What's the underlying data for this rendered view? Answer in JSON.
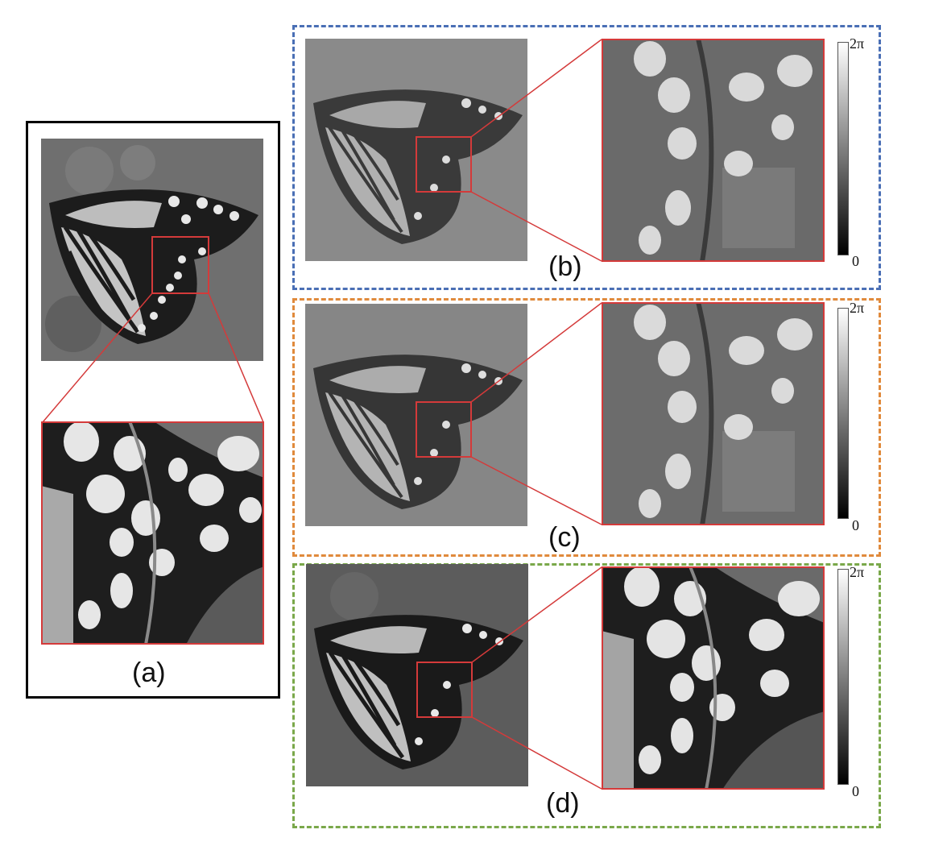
{
  "panels": {
    "a": {
      "label": "(a)"
    },
    "b": {
      "label": "(b)",
      "border_color": "#4a6fb5"
    },
    "c": {
      "label": "(c)",
      "border_color": "#e08a3c"
    },
    "d": {
      "label": "(d)",
      "border_color": "#7aa84a"
    }
  },
  "colorbar": {
    "top_label": "2π",
    "bottom_label": "0"
  },
  "colors": {
    "zoom_box": "#d43a3a",
    "frame_a": "#000000"
  }
}
